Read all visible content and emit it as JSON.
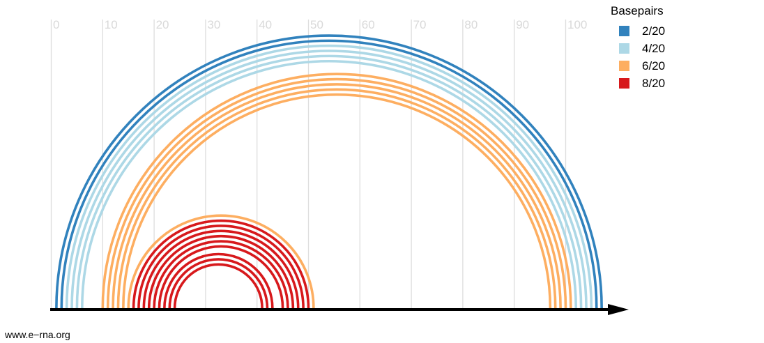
{
  "legend": {
    "title": "Basepairs",
    "items": [
      {
        "label": "2/20",
        "color": "#3182bd"
      },
      {
        "label": "4/20",
        "color": "#add8e6"
      },
      {
        "label": "6/20",
        "color": "#fdae61"
      },
      {
        "label": "8/20",
        "color": "#d7191c"
      }
    ]
  },
  "axis": {
    "ticks": [
      0,
      10,
      20,
      30,
      40,
      50,
      60,
      70,
      80,
      90,
      100
    ],
    "min": 0,
    "max": 110,
    "arrow_color": "#000000",
    "grid_color": "#dddddd"
  },
  "chart_data": {
    "type": "arc",
    "basepairs": [
      {
        "i": 1,
        "j": 107,
        "group": 0
      },
      {
        "i": 2,
        "j": 106,
        "group": 0
      },
      {
        "i": 3,
        "j": 105,
        "group": 1
      },
      {
        "i": 4,
        "j": 104,
        "group": 1
      },
      {
        "i": 5,
        "j": 103,
        "group": 1
      },
      {
        "i": 6,
        "j": 102,
        "group": 1
      },
      {
        "i": 10,
        "j": 101,
        "group": 2
      },
      {
        "i": 11,
        "j": 100,
        "group": 2
      },
      {
        "i": 12,
        "j": 99,
        "group": 2
      },
      {
        "i": 13,
        "j": 98,
        "group": 2
      },
      {
        "i": 14,
        "j": 97,
        "group": 2
      },
      {
        "i": 15,
        "j": 51,
        "group": 2
      },
      {
        "i": 16,
        "j": 50,
        "group": 3
      },
      {
        "i": 17,
        "j": 49,
        "group": 3
      },
      {
        "i": 18,
        "j": 48,
        "group": 3
      },
      {
        "i": 19,
        "j": 47,
        "group": 3
      },
      {
        "i": 20,
        "j": 46,
        "group": 3
      },
      {
        "i": 21,
        "j": 45,
        "group": 3
      },
      {
        "i": 22,
        "j": 43,
        "group": 3
      },
      {
        "i": 23,
        "j": 42,
        "group": 3
      },
      {
        "i": 24,
        "j": 41,
        "group": 3
      }
    ]
  },
  "watermark": "www.e−rna.org"
}
